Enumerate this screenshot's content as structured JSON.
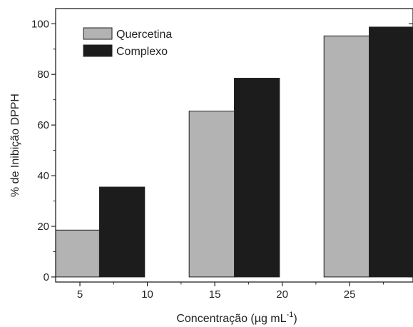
{
  "chart_data": {
    "type": "bar",
    "title": "",
    "xlabel": "Concentração (µg mL",
    "xlabel_superscript": "-1",
    "xlabel_suffix": ")",
    "ylabel": "% de Inibição DPPH",
    "xlim": [
      3.2,
      29.7
    ],
    "ylim": [
      -2,
      106
    ],
    "xticks": [
      5,
      10,
      15,
      20,
      25
    ],
    "yticks": [
      0,
      20,
      40,
      60,
      80,
      100
    ],
    "bar_width": 3.35,
    "legend_position": "top-left",
    "grid": false,
    "categories": [
      5,
      15,
      25
    ],
    "series": [
      {
        "name": "Quercetina",
        "color": "#b3b3b3",
        "x": [
          3.1,
          13.1,
          23.1
        ],
        "values": [
          18.5,
          65.5,
          95.2
        ]
      },
      {
        "name": "Complexo",
        "color": "#1c1c1c",
        "x": [
          6.45,
          16.45,
          26.45
        ],
        "values": [
          35.5,
          78.5,
          98.7
        ]
      }
    ]
  }
}
